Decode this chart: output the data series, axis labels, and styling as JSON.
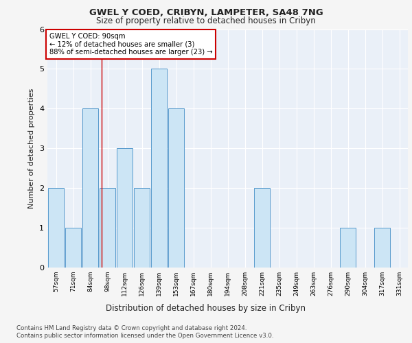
{
  "title1": "GWEL Y COED, CRIBYN, LAMPETER, SA48 7NG",
  "title2": "Size of property relative to detached houses in Cribyn",
  "xlabel": "Distribution of detached houses by size in Cribyn",
  "ylabel": "Number of detached properties",
  "bins": [
    "57sqm",
    "71sqm",
    "84sqm",
    "98sqm",
    "112sqm",
    "126sqm",
    "139sqm",
    "153sqm",
    "167sqm",
    "180sqm",
    "194sqm",
    "208sqm",
    "221sqm",
    "235sqm",
    "249sqm",
    "263sqm",
    "276sqm",
    "290sqm",
    "304sqm",
    "317sqm",
    "331sqm"
  ],
  "values": [
    2,
    1,
    4,
    2,
    3,
    2,
    5,
    4,
    0,
    0,
    0,
    0,
    2,
    0,
    0,
    0,
    0,
    1,
    0,
    1,
    0
  ],
  "bar_color": "#cce5f5",
  "bar_edge_color": "#5599cc",
  "red_line_x": 2.67,
  "annotation_title": "GWEL Y COED: 90sqm",
  "annotation_line1": "← 12% of detached houses are smaller (3)",
  "annotation_line2": "88% of semi-detached houses are larger (23) →",
  "footer1": "Contains HM Land Registry data © Crown copyright and database right 2024.",
  "footer2": "Contains public sector information licensed under the Open Government Licence v3.0.",
  "ylim": [
    0,
    6
  ],
  "yticks": [
    0,
    1,
    2,
    3,
    4,
    5,
    6
  ],
  "fig_bg": "#f5f5f5",
  "plot_bg": "#eaf0f8"
}
